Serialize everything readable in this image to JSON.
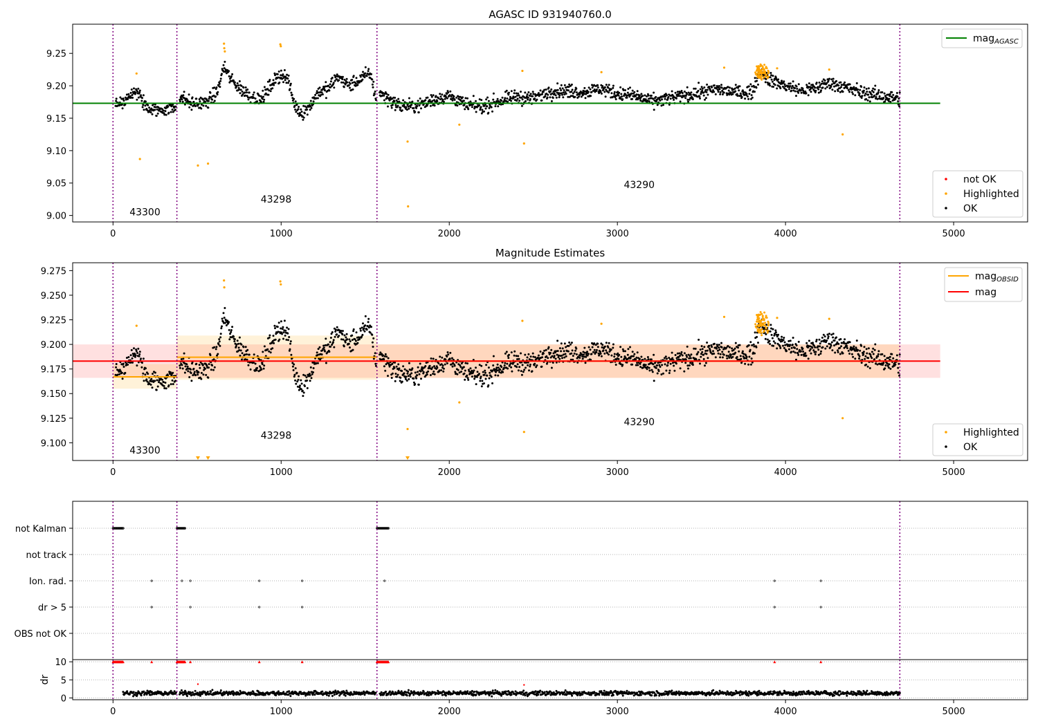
{
  "chart_data": [
    {
      "type": "scatter",
      "title": "AGASC ID 931940760.0",
      "xlabel": "",
      "ylabel": "",
      "xlim": [
        -240,
        5440
      ],
      "ylim": [
        8.99,
        9.295
      ],
      "x_ticks": [
        "0",
        "1000",
        "2000",
        "3000",
        "4000",
        "5000"
      ],
      "y_ticks": [
        "9.00",
        "9.05",
        "9.10",
        "9.15",
        "9.20",
        "9.25"
      ],
      "grid": false,
      "legend_top": {
        "placement": "top-right",
        "items": [
          {
            "label": "mag",
            "sub": "AGASC",
            "color": "#008000"
          }
        ]
      },
      "legend_bottom": {
        "placement": "bottom-right",
        "items": [
          {
            "label": "not OK",
            "color": "#ff0000"
          },
          {
            "label": "Highlighted",
            "color": "#ffa500"
          },
          {
            "label": "OK",
            "color": "#000000"
          }
        ]
      },
      "mag_agasc": 9.173,
      "obsid_boundaries": [
        0,
        380,
        1570,
        4680
      ],
      "obsid_labels": [
        {
          "text": "43300",
          "x": 190,
          "y": 9.0
        },
        {
          "text": "43298",
          "x": 970,
          "y": 9.02
        },
        {
          "text": "43290",
          "x": 3130,
          "y": 9.042
        }
      ],
      "highlighted_points": [
        {
          "x": 140,
          "y": 9.219
        },
        {
          "x": 160,
          "y": 9.087
        },
        {
          "x": 505,
          "y": 9.077
        },
        {
          "x": 565,
          "y": 9.08
        },
        {
          "x": 660,
          "y": 9.265
        },
        {
          "x": 662,
          "y": 9.258
        },
        {
          "x": 665,
          "y": 9.253
        },
        {
          "x": 995,
          "y": 9.264
        },
        {
          "x": 998,
          "y": 9.261
        },
        {
          "x": 1752,
          "y": 9.114
        },
        {
          "x": 1755,
          "y": 9.014
        },
        {
          "x": 2060,
          "y": 9.14
        },
        {
          "x": 2435,
          "y": 9.223
        },
        {
          "x": 2445,
          "y": 9.111
        },
        {
          "x": 2905,
          "y": 9.221
        },
        {
          "x": 3635,
          "y": 9.228
        },
        {
          "x": 3950,
          "y": 9.227
        },
        {
          "x": 4260,
          "y": 9.225
        },
        {
          "x": 4340,
          "y": 9.125
        }
      ]
    },
    {
      "type": "scatter",
      "title": "Magnitude Estimates",
      "xlabel": "",
      "ylabel": "",
      "xlim": [
        -240,
        5440
      ],
      "ylim": [
        9.082,
        9.283
      ],
      "x_ticks": [
        "0",
        "1000",
        "2000",
        "3000",
        "4000",
        "5000"
      ],
      "y_ticks": [
        "9.100",
        "9.125",
        "9.150",
        "9.175",
        "9.200",
        "9.225",
        "9.250",
        "9.275"
      ],
      "grid": false,
      "legend_top": {
        "placement": "top-right",
        "items": [
          {
            "label": "mag",
            "sub": "OBSID",
            "color": "#ffa500"
          },
          {
            "label": "mag",
            "sub": "",
            "color": "#ff0000"
          }
        ]
      },
      "legend_bottom": {
        "placement": "bottom-right",
        "items": [
          {
            "label": "Highlighted",
            "color": "#ffa500"
          },
          {
            "label": "OK",
            "color": "#000000"
          }
        ]
      },
      "mag_mean": 9.183,
      "mag_band": [
        9.166,
        9.2
      ],
      "obsid_mags": [
        {
          "x0": 0,
          "x1": 380,
          "mag": 9.167,
          "band": [
            9.155,
            9.18
          ]
        },
        {
          "x0": 380,
          "x1": 1570,
          "mag": 9.187,
          "band": [
            9.164,
            9.209
          ]
        },
        {
          "x0": 1570,
          "x1": 4680,
          "mag": 9.183,
          "band": [
            9.166,
            9.2
          ]
        }
      ],
      "obsid_boundaries": [
        0,
        380,
        1570,
        4680
      ],
      "obsid_labels": [
        {
          "text": "43300",
          "x": 190,
          "y": 9.089
        },
        {
          "text": "43298",
          "x": 970,
          "y": 9.104
        },
        {
          "text": "43290",
          "x": 3130,
          "y": 9.118
        }
      ],
      "highlighted_points": [
        {
          "x": 140,
          "y": 9.219
        },
        {
          "x": 660,
          "y": 9.265
        },
        {
          "x": 662,
          "y": 9.258
        },
        {
          "x": 995,
          "y": 9.264
        },
        {
          "x": 998,
          "y": 9.261
        },
        {
          "x": 1752,
          "y": 9.114
        },
        {
          "x": 2060,
          "y": 9.141
        },
        {
          "x": 2435,
          "y": 9.224
        },
        {
          "x": 2445,
          "y": 9.111
        },
        {
          "x": 2905,
          "y": 9.221
        },
        {
          "x": 3635,
          "y": 9.228
        },
        {
          "x": 3950,
          "y": 9.227
        },
        {
          "x": 4260,
          "y": 9.226
        },
        {
          "x": 4340,
          "y": 9.125
        }
      ],
      "below_range_markers": [
        {
          "x": 505
        },
        {
          "x": 565
        },
        {
          "x": 1752
        }
      ]
    },
    {
      "type": "scatter",
      "title": "",
      "xlabel": "",
      "ylabel": "",
      "xlim": [
        -240,
        5440
      ],
      "x_ticks": [
        "0",
        "1000",
        "2000",
        "3000",
        "4000",
        "5000"
      ],
      "grid": true,
      "flag_rows": [
        "not Kalman",
        "not track",
        "Ion. rad.",
        "dr > 5",
        "OBS not OK"
      ],
      "flags": {
        "not Kalman": [
          [
            0,
            60
          ],
          [
            380,
            430
          ],
          [
            1570,
            1640
          ]
        ],
        "not track": [],
        "Ion. rad.": [
          230,
          410,
          460,
          870,
          1125,
          1615,
          3935,
          4210
        ],
        "dr > 5": [
          230,
          460,
          870,
          1125,
          3935,
          4210
        ],
        "OBS not OK": []
      },
      "obsid_boundaries": [
        0,
        380,
        1570,
        4680
      ]
    },
    {
      "type": "scatter",
      "title": "",
      "xlabel": "",
      "ylabel": "dr",
      "xlim": [
        -240,
        5440
      ],
      "ylim": [
        -0.5,
        10.6
      ],
      "y_ticks": [
        "0",
        "5",
        "10"
      ],
      "x_ticks": [
        "0",
        "1000",
        "2000",
        "3000",
        "4000",
        "5000"
      ],
      "grid": true,
      "high_dr_markers": [
        {
          "x": 230
        },
        {
          "x": 460
        },
        {
          "x": 870
        },
        {
          "x": 1125
        },
        {
          "x": 3935
        },
        {
          "x": 4210
        }
      ],
      "high_dr_ranges": [
        [
          0,
          60
        ],
        [
          380,
          430
        ],
        [
          1570,
          1640
        ]
      ],
      "outliers": [
        {
          "x": 505,
          "y": 3.8
        },
        {
          "x": 2445,
          "y": 3.6
        }
      ],
      "obsid_boundaries": [
        0,
        380,
        1570,
        4680
      ]
    }
  ]
}
